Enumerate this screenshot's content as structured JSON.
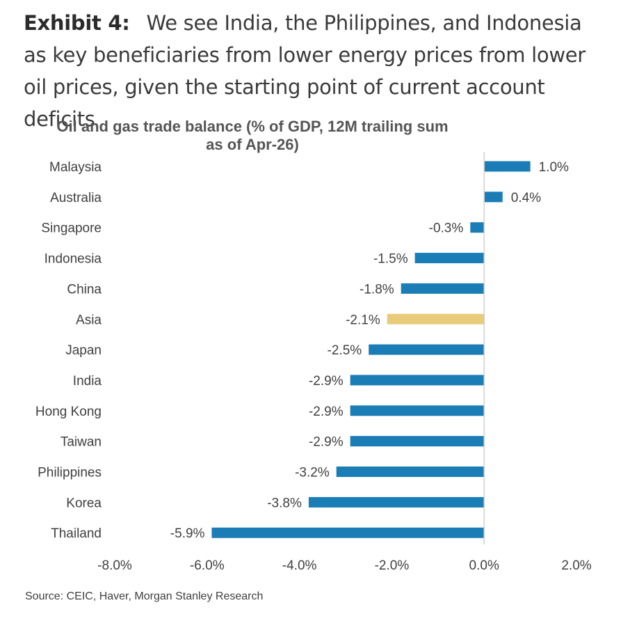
{
  "header": {
    "exhibit_label": "Exhibit 4:",
    "exhibit_text": "We see India, the Philippines, and Indonesia as key beneficiaries from lower energy prices from lower oil prices, given the starting point of current account deficits"
  },
  "source": "Source: CEIC, Haver, Morgan Stanley Research",
  "colors": {
    "bar": "#1b7db6",
    "highlight": "#e8cc7a",
    "axis": "#d0d0d0"
  },
  "chart_data": {
    "type": "bar",
    "orientation": "horizontal",
    "title_lines": [
      "Oil and gas trade balance (% of GDP, 12M trailing sum",
      "as of Apr-26)"
    ],
    "categories": [
      "Malaysia",
      "Australia",
      "Singapore",
      "Indonesia",
      "China",
      "Asia",
      "Japan",
      "India",
      "Hong Kong",
      "Taiwan",
      "Philippines",
      "Korea",
      "Thailand"
    ],
    "values": [
      1.0,
      0.4,
      -0.3,
      -1.5,
      -1.8,
      -2.1,
      -2.5,
      -2.9,
      -2.9,
      -2.9,
      -3.2,
      -3.8,
      -5.9
    ],
    "value_labels": [
      "1.0%",
      "0.4%",
      "-0.3%",
      "-1.5%",
      "-1.8%",
      "-2.1%",
      "-2.5%",
      "-2.9%",
      "-2.9%",
      "-2.9%",
      "-3.2%",
      "-3.8%",
      "-5.9%"
    ],
    "highlight_category": "Asia",
    "xlim": [
      -8,
      2
    ],
    "xticks": [
      -8,
      -6,
      -4,
      -2,
      0,
      2
    ],
    "xtick_labels": [
      "-8.0%",
      "-6.0%",
      "-4.0%",
      "-2.0%",
      "0.0%",
      "2.0%"
    ],
    "grid": false,
    "legend": "none"
  }
}
